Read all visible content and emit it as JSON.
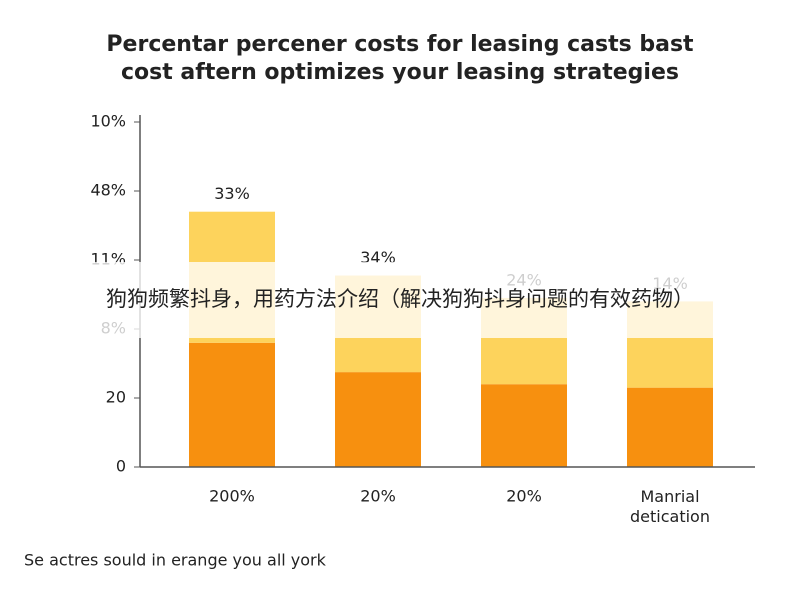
{
  "chart_data": {
    "type": "stacked_bar",
    "title": "Percentar percener costs for leasing casts bast\ncost aftern optimizes your leasing strategies",
    "categories": [
      "200%",
      "20%",
      "20%",
      "Manrial\ndetication"
    ],
    "series": [
      {
        "color": "#f7900f",
        "values": [
          36,
          27.5,
          24,
          23
        ]
      },
      {
        "color": "#fdd35c",
        "values": [
          38,
          28,
          25,
          25
        ]
      }
    ],
    "bar_labels": [
      "33%",
      "34%",
      "24%",
      "14%"
    ],
    "ylim": [
      0,
      100
    ],
    "yticks": [
      0,
      20,
      {
        "value": 40,
        "label": "8%"
      },
      {
        "value": 60,
        "label": "11%"
      },
      {
        "value": 80,
        "label": "48%"
      },
      {
        "value": 100,
        "label": "10%"
      }
    ],
    "footnote": "Se actres sould in erange you all york"
  },
  "overlay": {
    "text": "狗狗频繁抖身，用药方法介绍（解决狗狗抖身问题的有效药物）"
  }
}
